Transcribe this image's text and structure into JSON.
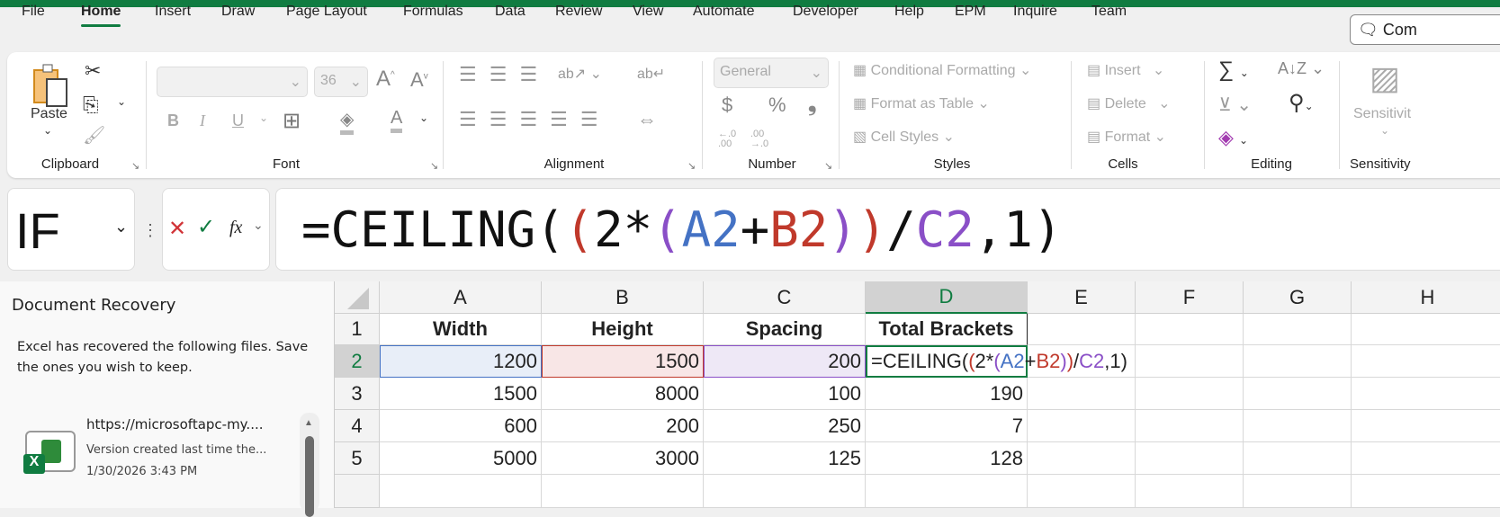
{
  "tabs": [
    "File",
    "Home",
    "Insert",
    "Draw",
    "Page Layout",
    "Formulas",
    "Data",
    "Review",
    "View",
    "Automate",
    "Developer",
    "Help",
    "EPM",
    "Inquire",
    "Team"
  ],
  "active_tab": "Home",
  "comments_label": "Com",
  "ribbon": {
    "clipboard": {
      "paste": "Paste",
      "label": "Clipboard"
    },
    "font": {
      "font_name": "",
      "font_size": "36",
      "bold": "B",
      "italic": "I",
      "underline": "U",
      "label": "Font"
    },
    "alignment": {
      "label": "Alignment"
    },
    "number": {
      "format": "General",
      "currency": "$",
      "percent": "%",
      "comma": "❟",
      "inc_decimal": "←.0 .00",
      "dec_decimal": ".00 →.0",
      "label": "Number"
    },
    "styles": {
      "conditional": "Conditional Formatting",
      "table": "Format as Table",
      "cell_styles": "Cell Styles",
      "label": "Styles"
    },
    "cells": {
      "insert": "Insert",
      "delete": "Delete",
      "format": "Format",
      "label": "Cells"
    },
    "editing": {
      "label": "Editing"
    },
    "sensitivity": {
      "button": "Sensitivit",
      "label": "Sensitivity"
    }
  },
  "name_box": "IF",
  "formula_bar": {
    "fx": "fx",
    "formula_parts": [
      "=CEILING(",
      "(",
      "2*",
      "(",
      "A2",
      "+",
      "B2",
      ")",
      ")",
      "/",
      "C2",
      ",1)"
    ]
  },
  "formula_colors": {
    "ref_a": "#4472c4",
    "ref_b": "#c0392b",
    "ref_c": "#8a4fc7",
    "paren1": "#c0392b",
    "paren2": "#8a4fc7"
  },
  "recovery": {
    "title": "Document Recovery",
    "message": "Excel has recovered the following files.  Save the ones you wish to keep.",
    "file": {
      "name": "https://microsoftapc-my....",
      "desc": "Version created last time the...",
      "date": "1/30/2026 3:43 PM"
    }
  },
  "sheet": {
    "columns": [
      "A",
      "B",
      "C",
      "D",
      "E",
      "F",
      "G",
      "H"
    ],
    "rows": [
      "1",
      "2",
      "3",
      "4",
      "5"
    ],
    "headers": [
      "Width",
      "Height",
      "Spacing",
      "Total Brackets"
    ],
    "data": [
      [
        "1200",
        "1500",
        "200",
        ""
      ],
      [
        "1500",
        "8000",
        "100",
        "190"
      ],
      [
        "600",
        "200",
        "250",
        "7"
      ],
      [
        "5000",
        "3000",
        "125",
        "128"
      ]
    ]
  }
}
